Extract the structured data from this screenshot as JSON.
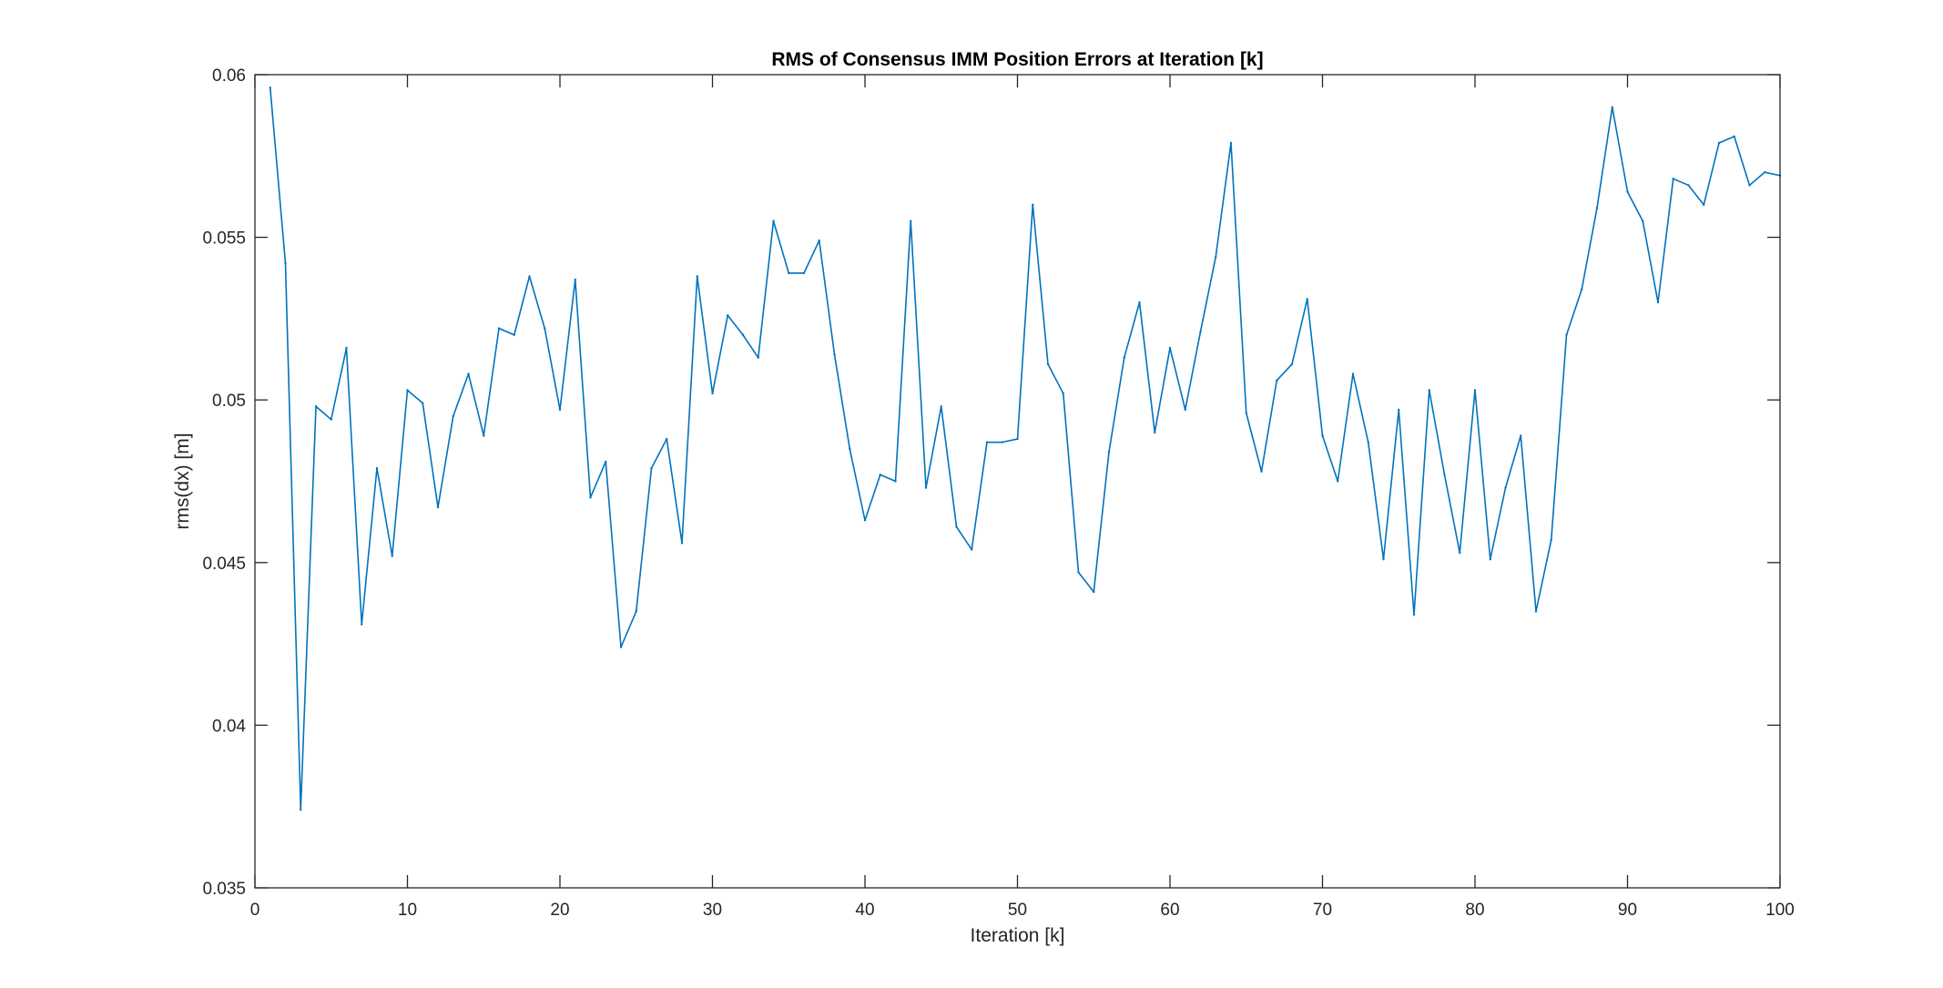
{
  "chart_data": {
    "type": "line",
    "title": "RMS of Consensus IMM Position Errors at Iteration [k]",
    "xlabel": "Iteration [k]",
    "ylabel": "rms(dx) [m]",
    "xlim": [
      0,
      100
    ],
    "ylim": [
      0.035,
      0.06
    ],
    "xticks": [
      0,
      10,
      20,
      30,
      40,
      50,
      60,
      70,
      80,
      90,
      100
    ],
    "yticks": [
      0.035,
      0.04,
      0.045,
      0.05,
      0.055,
      0.06
    ],
    "xtick_labels": [
      "0",
      "10",
      "20",
      "30",
      "40",
      "50",
      "60",
      "70",
      "80",
      "90",
      "100"
    ],
    "ytick_labels": [
      "0.035",
      "0.04",
      "0.045",
      "0.05",
      "0.055",
      "0.06"
    ],
    "grid": false,
    "line_color": "#0072BD",
    "series": [
      {
        "x": [
          1,
          2,
          3,
          4,
          5,
          6,
          7,
          8,
          9,
          10,
          11,
          12,
          13,
          14,
          15,
          16,
          17,
          18,
          19,
          20,
          21,
          22,
          23,
          24,
          25,
          26,
          27,
          28,
          29,
          30,
          31,
          32,
          33,
          34,
          35,
          36,
          37,
          38,
          39,
          40,
          41,
          42,
          43,
          44,
          45,
          46,
          47,
          48,
          49,
          50,
          51,
          52,
          53,
          54,
          55,
          56,
          57,
          58,
          59,
          60,
          61,
          62,
          63,
          64,
          65,
          66,
          67,
          68,
          69,
          70,
          71,
          72,
          73,
          74,
          75,
          76,
          77,
          78,
          79,
          80,
          81,
          82,
          83,
          84,
          85,
          86,
          87,
          88,
          89,
          90,
          91,
          92,
          93,
          94,
          95,
          96,
          97,
          98,
          99,
          100
        ],
        "values": [
          0.0596,
          0.0542,
          0.0374,
          0.0498,
          0.0494,
          0.0516,
          0.0431,
          0.0479,
          0.0452,
          0.0503,
          0.0499,
          0.0467,
          0.0495,
          0.0508,
          0.0489,
          0.0522,
          0.052,
          0.0538,
          0.0522,
          0.0497,
          0.0537,
          0.047,
          0.0481,
          0.0424,
          0.0435,
          0.0479,
          0.0488,
          0.0456,
          0.0538,
          0.0502,
          0.0526,
          0.052,
          0.0513,
          0.0555,
          0.0539,
          0.0539,
          0.0549,
          0.0514,
          0.0485,
          0.0463,
          0.0477,
          0.0475,
          0.0555,
          0.0473,
          0.0498,
          0.0461,
          0.0454,
          0.0487,
          0.0487,
          0.0488,
          0.056,
          0.0511,
          0.0502,
          0.0447,
          0.0441,
          0.0484,
          0.0513,
          0.053,
          0.049,
          0.0516,
          0.0497,
          0.0521,
          0.0544,
          0.0579,
          0.0496,
          0.0478,
          0.0506,
          0.0511,
          0.0531,
          0.0489,
          0.0475,
          0.0508,
          0.0487,
          0.0451,
          0.0497,
          0.0434,
          0.0503,
          0.0477,
          0.0453,
          0.0503,
          0.0451,
          0.0473,
          0.0489,
          0.0435,
          0.0457,
          0.052,
          0.0534,
          0.0559,
          0.059,
          0.0564,
          0.0555,
          0.053,
          0.0568,
          0.0566,
          0.056,
          0.0579,
          0.0581,
          0.0566,
          0.057,
          0.0569
        ]
      }
    ]
  }
}
